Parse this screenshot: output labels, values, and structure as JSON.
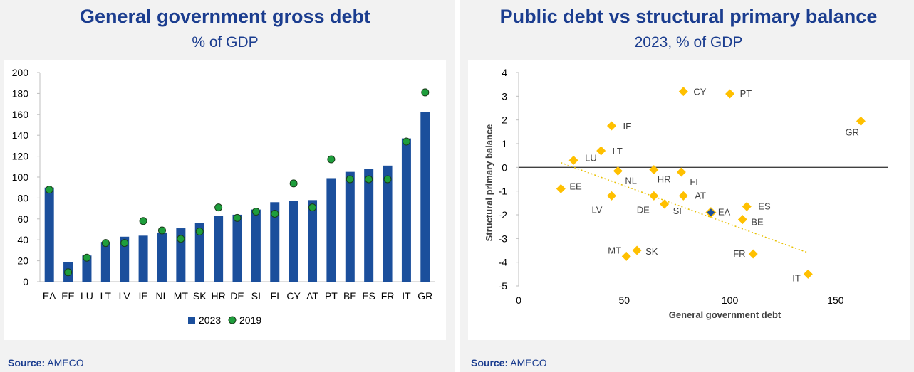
{
  "left": {
    "title": "General government gross debt",
    "subtitle": "% of GDP",
    "source_label": "Source:",
    "source_value": "AMECO"
  },
  "right": {
    "title": "Public debt vs structural primary balance",
    "subtitle": "2023, % of GDP",
    "source_label": "Source:",
    "source_value": "AMECO"
  },
  "chart_data": [
    {
      "type": "bar",
      "title": "General government gross debt",
      "subtitle": "% of GDP",
      "categories": [
        "EA",
        "EE",
        "LU",
        "LT",
        "LV",
        "IE",
        "NL",
        "MT",
        "SK",
        "HR",
        "DE",
        "SI",
        "FI",
        "CY",
        "AT",
        "PT",
        "BE",
        "ES",
        "FR",
        "IT",
        "GR"
      ],
      "series": [
        {
          "name": "2023",
          "kind": "bar",
          "color": "#1b4f9c",
          "values": [
            90,
            19,
            25,
            38,
            43,
            44,
            47,
            51,
            56,
            63,
            64,
            69,
            76,
            77,
            78,
            99,
            105,
            108,
            111,
            137,
            162
          ]
        },
        {
          "name": "2019",
          "kind": "marker",
          "color": "#1e9e3c",
          "values": [
            88,
            9,
            23,
            37,
            37,
            58,
            49,
            41,
            48,
            71,
            61,
            67,
            65,
            94,
            71,
            117,
            98,
            98,
            98,
            134,
            181
          ]
        }
      ],
      "ylim": [
        0,
        200
      ],
      "yticks": [
        "0",
        "20",
        "40",
        "60",
        "80",
        "100",
        "120",
        "140",
        "160",
        "180",
        "200"
      ],
      "grid": true,
      "legend": "bottom"
    },
    {
      "type": "scatter",
      "title": "Public debt vs structural primary balance",
      "subtitle": "2023, % of GDP",
      "xlabel": "General government debt",
      "ylabel": "Structural primary balance",
      "xlim": [
        0,
        175
      ],
      "ylim": [
        -5,
        4
      ],
      "xticks": [
        "0",
        "50",
        "100",
        "150"
      ],
      "yticks": [
        "4",
        "3",
        "2",
        "1",
        "0",
        "-1",
        "-2",
        "-3",
        "-4",
        "-5"
      ],
      "points": [
        {
          "label": "CY",
          "x": 78,
          "y": 3.2
        },
        {
          "label": "PT",
          "x": 100,
          "y": 3.1
        },
        {
          "label": "GR",
          "x": 162,
          "y": 1.95
        },
        {
          "label": "IE",
          "x": 44,
          "y": 1.75
        },
        {
          "label": "LT",
          "x": 39,
          "y": 0.7
        },
        {
          "label": "LU",
          "x": 26,
          "y": 0.3
        },
        {
          "label": "NL",
          "x": 47,
          "y": -0.15
        },
        {
          "label": "HR",
          "x": 64,
          "y": -0.1
        },
        {
          "label": "FI",
          "x": 77,
          "y": -0.2
        },
        {
          "label": "EE",
          "x": 20,
          "y": -0.9
        },
        {
          "label": "LV",
          "x": 44,
          "y": -1.2
        },
        {
          "label": "DE",
          "x": 64,
          "y": -1.2
        },
        {
          "label": "AT",
          "x": 78,
          "y": -1.2
        },
        {
          "label": "SI",
          "x": 69,
          "y": -1.55
        },
        {
          "label": "ES",
          "x": 108,
          "y": -1.65
        },
        {
          "label": "EA",
          "x": 91,
          "y": -1.9
        },
        {
          "label": "BE",
          "x": 106,
          "y": -2.2
        },
        {
          "label": "MT",
          "x": 51,
          "y": -3.75
        },
        {
          "label": "SK",
          "x": 56,
          "y": -3.5
        },
        {
          "label": "FR",
          "x": 111,
          "y": -3.65
        },
        {
          "label": "IT",
          "x": 137,
          "y": -4.5
        }
      ],
      "highlight": "EA",
      "point_color": "#ffc000",
      "highlight_color": "#1b4f9c",
      "trendline": {
        "x": [
          20,
          137
        ],
        "y": [
          0.2,
          -3.6
        ],
        "color": "#e8c000"
      }
    }
  ]
}
